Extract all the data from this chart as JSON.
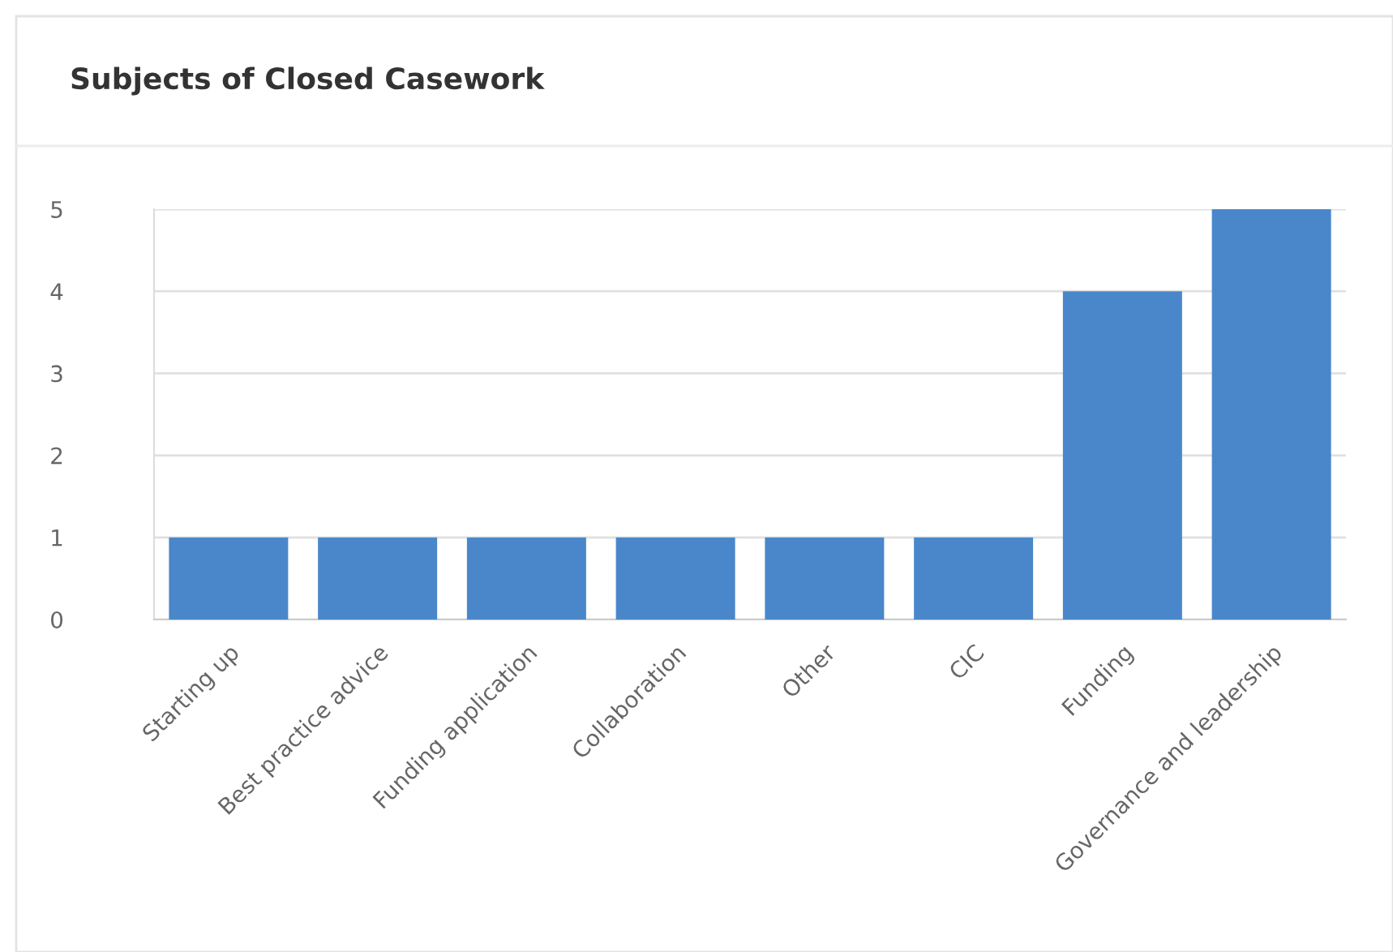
{
  "chart_data": {
    "type": "bar",
    "title": "Subjects of Closed Casework",
    "categories": [
      "Starting up",
      "Best practice advice",
      "Funding application",
      "Collaboration",
      "Other",
      "CIC",
      "Funding",
      "Governance and leadership"
    ],
    "values": [
      1,
      1,
      1,
      1,
      1,
      1,
      4,
      5
    ],
    "color": "#4a87ca",
    "ylim": [
      0,
      5
    ],
    "yticks": [
      0,
      1,
      2,
      3,
      4,
      5
    ],
    "grid": "y",
    "legend": false
  }
}
